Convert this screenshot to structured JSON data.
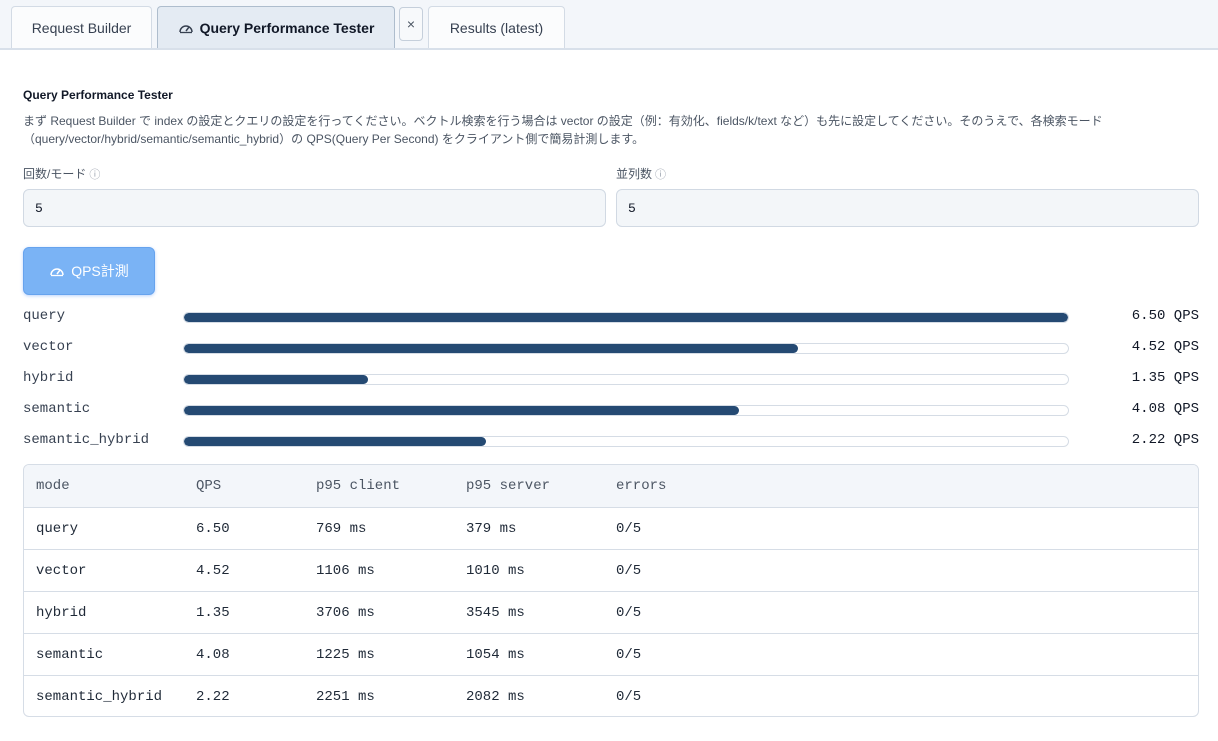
{
  "tabs": [
    {
      "label": "Request Builder"
    },
    {
      "label": "Query Performance Tester",
      "active": true
    },
    {
      "label": "Results (latest)"
    }
  ],
  "close_label": "×",
  "page": {
    "title": "Query Performance Tester",
    "description_line1": "まず Request Builder で index の設定とクエリの設定を行ってください。ベクトル検索を行う場合は vector の設定（例：有効化、fields/k/text など）も先に設定してください。そのうえで、各検索モード",
    "description_line2": "（query/vector/hybrid/semantic/semantic_hybrid）の QPS(Query Per Second) をクライアント側で簡易計測します。"
  },
  "fields": {
    "count_label": "回数/モード",
    "count_value": "5",
    "parallel_label": "並列数",
    "parallel_value": "5",
    "info_icon": "ⓘ"
  },
  "measure_button": {
    "label": "QPS計測"
  },
  "accent_colors": {
    "bar": "#254a73",
    "button": "#7ab3f5"
  },
  "bars": [
    {
      "mode": "query",
      "qps": 6.5,
      "fraction": 1.0,
      "value_text": "6.50 QPS"
    },
    {
      "mode": "vector",
      "qps": 4.52,
      "fraction": 0.695,
      "value_text": "4.52 QPS"
    },
    {
      "mode": "hybrid",
      "qps": 1.35,
      "fraction": 0.208,
      "value_text": "1.35 QPS"
    },
    {
      "mode": "semantic",
      "qps": 4.08,
      "fraction": 0.628,
      "value_text": "4.08 QPS"
    },
    {
      "mode": "semantic_hybrid",
      "qps": 2.22,
      "fraction": 0.342,
      "value_text": "2.22 QPS"
    }
  ],
  "table": {
    "headers": [
      "mode",
      "QPS",
      "p95 client",
      "p95 server",
      "errors"
    ],
    "rows": [
      [
        "query",
        "6.50",
        "769 ms",
        "379 ms",
        "0/5"
      ],
      [
        "vector",
        "4.52",
        "1106 ms",
        "1010 ms",
        "0/5"
      ],
      [
        "hybrid",
        "1.35",
        "3706 ms",
        "3545 ms",
        "0/5"
      ],
      [
        "semantic",
        "4.08",
        "1225 ms",
        "1054 ms",
        "0/5"
      ],
      [
        "semantic_hybrid",
        "2.22",
        "2251 ms",
        "2082 ms",
        "0/5"
      ]
    ]
  }
}
